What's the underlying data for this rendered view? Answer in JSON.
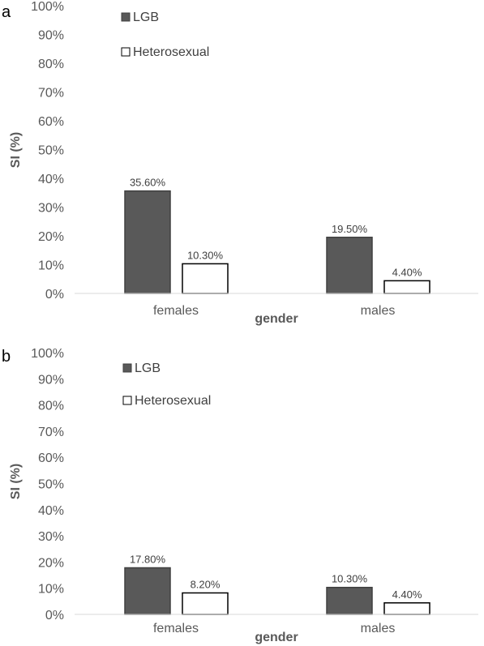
{
  "chart_data": [
    {
      "type": "bar",
      "panel_label": "a",
      "categories": [
        "females",
        "males"
      ],
      "series": [
        {
          "name": "LGB",
          "values": [
            35.6,
            19.5
          ],
          "labels": [
            "35.60%",
            "19.50%"
          ],
          "color": "#595959"
        },
        {
          "name": "Heterosexual",
          "values": [
            10.3,
            4.4
          ],
          "labels": [
            "10.30%",
            "4.40%"
          ],
          "color": "#ffffff"
        }
      ],
      "xlabel": "gender",
      "ylabel": "SI (%)",
      "ylim": [
        0,
        100
      ],
      "yticks": [
        "0%",
        "10%",
        "20%",
        "30%",
        "40%",
        "50%",
        "60%",
        "70%",
        "80%",
        "90%",
        "100%"
      ],
      "grid": false,
      "legend": "top-left"
    },
    {
      "type": "bar",
      "panel_label": "b",
      "categories": [
        "females",
        "males"
      ],
      "series": [
        {
          "name": "LGB",
          "values": [
            17.8,
            10.3
          ],
          "labels": [
            "17.80%",
            "10.30%"
          ],
          "color": "#595959"
        },
        {
          "name": "Heterosexual",
          "values": [
            8.2,
            4.4
          ],
          "labels": [
            "8.20%",
            "4.40%"
          ],
          "color": "#ffffff"
        }
      ],
      "xlabel": "gender",
      "ylabel": "SI (%)",
      "ylim": [
        0,
        100
      ],
      "yticks": [
        "0%",
        "10%",
        "20%",
        "30%",
        "40%",
        "50%",
        "60%",
        "70%",
        "80%",
        "90%",
        "100%"
      ],
      "grid": false,
      "legend": "top-left"
    }
  ]
}
